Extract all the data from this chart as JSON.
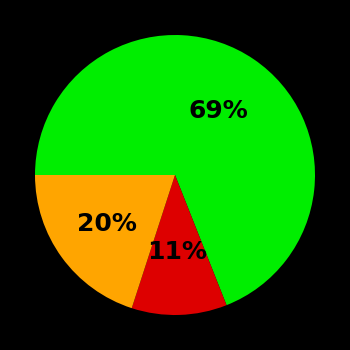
{
  "slices": [
    69,
    11,
    20
  ],
  "colors": [
    "#00ee00",
    "#dd0000",
    "#ffa500"
  ],
  "labels": [
    "69%",
    "11%",
    "20%"
  ],
  "label_offsets": [
    0.55,
    0.55,
    0.6
  ],
  "background_color": "#000000",
  "text_color": "#000000",
  "label_fontsize": 18,
  "label_fontweight": "bold",
  "startangle": 180,
  "counterclock": false,
  "figsize": [
    3.5,
    3.5
  ],
  "dpi": 100
}
